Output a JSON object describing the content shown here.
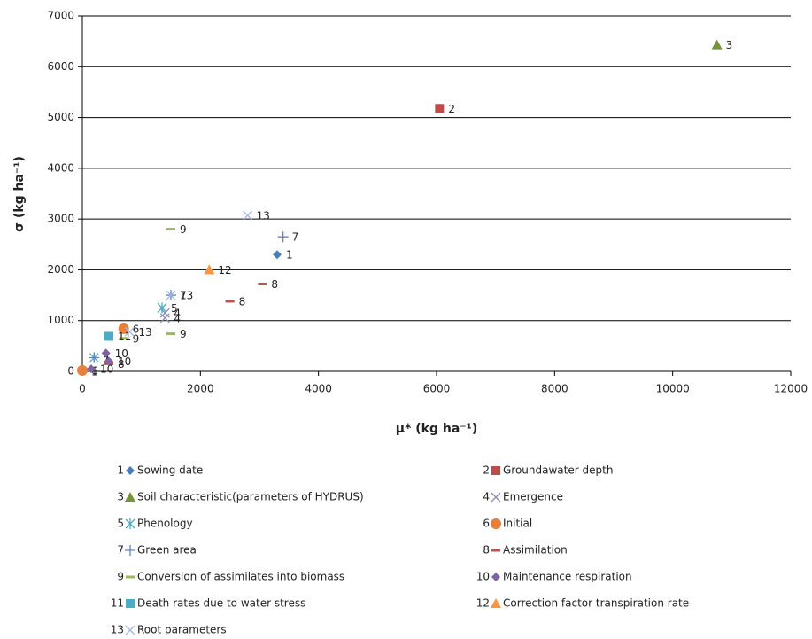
{
  "chart_data": {
    "type": "scatter",
    "xlabel": "μ* (kg ha⁻¹)",
    "ylabel": "σ (kg ha⁻¹)",
    "xlim": [
      0,
      12000
    ],
    "xticks": [
      0,
      2000,
      4000,
      6000,
      8000,
      10000,
      12000
    ],
    "ylim": [
      0,
      7000
    ],
    "yticks": [
      0,
      1000,
      2000,
      3000,
      4000,
      5000,
      6000,
      7000
    ],
    "grid": true,
    "series": [
      {
        "key": "1",
        "name": "Sowing date",
        "color": "#4a7ebb",
        "marker": "diamond",
        "x": [
          3300,
          0
        ],
        "y": [
          2300,
          0
        ]
      },
      {
        "key": "2",
        "name": "Groundawater depth",
        "color": "#be4b48",
        "marker": "square",
        "x": [
          6050
        ],
        "y": [
          5180
        ]
      },
      {
        "key": "3",
        "name": "Soil characteristic(parameters of HYDRUS)",
        "color": "#77933c",
        "marker": "triangle",
        "x": [
          10750
        ],
        "y": [
          6430
        ]
      },
      {
        "key": "4",
        "name": "Emergence",
        "color": "#8c8cb4",
        "marker": "x",
        "x": [
          1400,
          1400
        ],
        "y": [
          1050,
          1150
        ]
      },
      {
        "key": "5",
        "name": "Phenology",
        "color": "#4bacc6",
        "marker": "star",
        "x": [
          1350,
          200
        ],
        "y": [
          1250,
          270
        ]
      },
      {
        "key": "6",
        "name": "Initial",
        "color": "#e6803a",
        "marker": "circle",
        "x": [
          700,
          0
        ],
        "y": [
          840,
          20
        ]
      },
      {
        "key": "7",
        "name": "Green area",
        "color": "#5b86c5",
        "marker": "plus",
        "x": [
          3400,
          1500,
          200
        ],
        "y": [
          2650,
          1500,
          270
        ]
      },
      {
        "key": "8",
        "name": "Assimilation",
        "color": "#c0504d",
        "marker": "dash",
        "x": [
          3050,
          2500,
          450
        ],
        "y": [
          1720,
          1380,
          150
        ]
      },
      {
        "key": "9",
        "name": "Conversion of assimilates into biomass",
        "color": "#9bbb59",
        "marker": "dash",
        "x": [
          1500,
          1500,
          700
        ],
        "y": [
          2800,
          740,
          650
        ]
      },
      {
        "key": "10",
        "name": "Maintenance respiration",
        "color": "#8064a2",
        "marker": "diamond",
        "x": [
          400,
          150,
          450
        ],
        "y": [
          360,
          50,
          200
        ]
      },
      {
        "key": "11",
        "name": "Death rates due to water stress",
        "color": "#4bacc6",
        "marker": "square",
        "x": [
          450
        ],
        "y": [
          690
        ]
      },
      {
        "key": "12",
        "name": "Correction factor transpiration rate",
        "color": "#f79646",
        "marker": "triangle",
        "x": [
          2150
        ],
        "y": [
          2000
        ]
      },
      {
        "key": "13",
        "name": "Root parameters",
        "color": "#a5b8e0",
        "marker": "x",
        "x": [
          2800,
          1500,
          800
        ],
        "y": [
          3070,
          1500,
          780
        ]
      }
    ]
  }
}
